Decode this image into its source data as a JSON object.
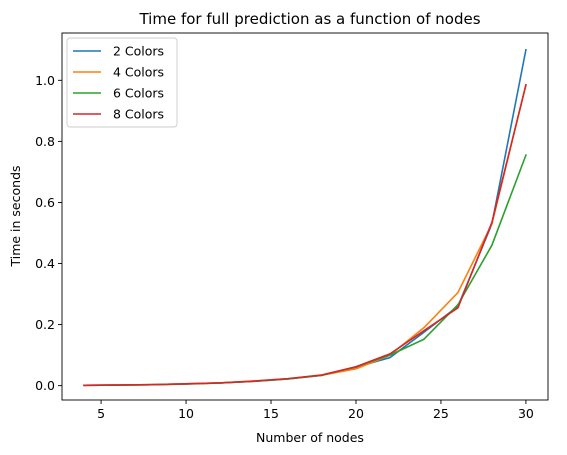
{
  "chart_data": {
    "type": "line",
    "title": "Time for full prediction as a function of nodes",
    "xlabel": "Number of nodes",
    "ylabel": "Time in seconds",
    "xlim": [
      2.7,
      31.3
    ],
    "ylim": [
      -0.047,
      1.155
    ],
    "xticks": [
      5,
      10,
      15,
      20,
      25,
      30
    ],
    "xtick_labels": [
      "5",
      "10",
      "15",
      "20",
      "25",
      "30"
    ],
    "yticks": [
      0.0,
      0.2,
      0.4,
      0.6,
      0.8,
      1.0
    ],
    "ytick_labels": [
      "0.0",
      "0.2",
      "0.4",
      "0.6",
      "0.8",
      "1.0"
    ],
    "grid": false,
    "legend_position": "top-left",
    "x": [
      4,
      6,
      8,
      10,
      12,
      14,
      16,
      18,
      20,
      22,
      24,
      26,
      28,
      30
    ],
    "series": [
      {
        "name": "2 Colors",
        "color": "#1f77b4",
        "values": [
          0.001,
          0.002,
          0.003,
          0.006,
          0.009,
          0.014,
          0.022,
          0.034,
          0.06,
          0.092,
          0.175,
          0.26,
          0.53,
          1.1
        ]
      },
      {
        "name": "4 Colors",
        "color": "#ff7f0e",
        "values": [
          0.001,
          0.002,
          0.003,
          0.006,
          0.009,
          0.015,
          0.023,
          0.034,
          0.055,
          0.1,
          0.19,
          0.305,
          0.53,
          0.985
        ]
      },
      {
        "name": "6 Colors",
        "color": "#2ca02c",
        "values": [
          0.001,
          0.002,
          0.003,
          0.005,
          0.009,
          0.014,
          0.022,
          0.034,
          0.062,
          0.1,
          0.152,
          0.265,
          0.46,
          0.755
        ]
      },
      {
        "name": "8 Colors",
        "color": "#d62728",
        "values": [
          0.001,
          0.002,
          0.003,
          0.006,
          0.009,
          0.015,
          0.023,
          0.035,
          0.062,
          0.104,
          0.18,
          0.255,
          0.535,
          0.985
        ]
      }
    ]
  }
}
